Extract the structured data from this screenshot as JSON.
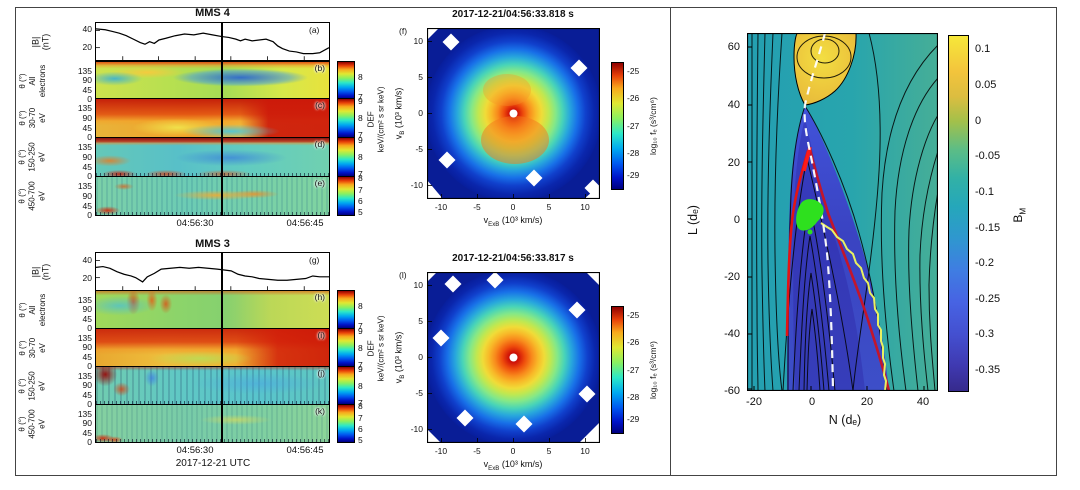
{
  "figure": {
    "left": {
      "cbar_label_lines": [
        "DEF",
        "keV/(cm² s sr keV)"
      ],
      "groups": [
        {
          "title": "MMS 4",
          "bfield": {
            "label_lines": [
              "|B|",
              "(nT)"
            ],
            "yticks": [
              "40",
              "20"
            ],
            "panel": "(a)"
          },
          "spects": [
            {
              "panel": "(b)",
              "label_lines": [
                "θ (°)",
                "All",
                "electrons"
              ],
              "yticks": [
                "135",
                "90",
                "45",
                "0"
              ],
              "cticks": [
                "8",
                "7"
              ]
            },
            {
              "panel": "(c)",
              "label_lines": [
                "θ (°)",
                "30-70",
                "eV"
              ],
              "yticks": [
                "135",
                "90",
                "45",
                "0"
              ],
              "cticks": [
                "9",
                "8",
                "7"
              ]
            },
            {
              "panel": "(d)",
              "label_lines": [
                "θ (°)",
                "150-250",
                "eV"
              ],
              "yticks": [
                "135",
                "90",
                "45",
                "0"
              ],
              "cticks": [
                "9",
                "8",
                "7"
              ]
            },
            {
              "panel": "(e)",
              "label_lines": [
                "θ (°)",
                "450-700",
                "eV"
              ],
              "yticks": [
                "135",
                "90",
                "45",
                "0"
              ],
              "cticks": [
                "8",
                "7",
                "6",
                "5"
              ]
            }
          ],
          "xticks": [
            "04:56:30",
            "04:56:45"
          ]
        },
        {
          "title": "MMS 3",
          "bfield": {
            "label_lines": [
              "|B|",
              "(nT)"
            ],
            "yticks": [
              "40",
              "20"
            ],
            "panel": "(g)"
          },
          "spects": [
            {
              "panel": "(h)",
              "label_lines": [
                "θ (°)",
                "All",
                "electrons"
              ],
              "yticks": [
                "135",
                "90",
                "45",
                "0"
              ],
              "cticks": [
                "8",
                "7"
              ]
            },
            {
              "panel": "(i)",
              "label_lines": [
                "θ (°)",
                "30-70",
                "eV"
              ],
              "yticks": [
                "135",
                "90",
                "45",
                "0"
              ],
              "cticks": [
                "9",
                "8",
                "7"
              ]
            },
            {
              "panel": "(j)",
              "label_lines": [
                "θ (°)",
                "150-250",
                "eV"
              ],
              "yticks": [
                "135",
                "90",
                "45",
                "0"
              ],
              "cticks": [
                "9",
                "8",
                "7"
              ]
            },
            {
              "panel": "(k)",
              "label_lines": [
                "θ (°)",
                "450-700",
                "eV"
              ],
              "yticks": [
                "135",
                "90",
                "45",
                "0"
              ],
              "cticks": [
                "8",
                "7",
                "6",
                "5"
              ]
            }
          ],
          "xticks": [
            "04:56:30",
            "04:56:45"
          ],
          "xlabel": "2017-12-21 UTC"
        }
      ]
    },
    "middle": {
      "ylabel": {
        "pre": "v",
        "sub": "B",
        "post": " (10³ km/s)"
      },
      "xlabel": {
        "pre": "v",
        "sub": "ExB",
        "post": " (10³ km/s)"
      },
      "cbar_label": "log₁₀ fₑ (s³/cm⁶)",
      "plots": [
        {
          "title": "2017-12-21/04:56:33.818 s",
          "panel": "(f)",
          "xticks": [
            "-10",
            "-5",
            "0",
            "5",
            "10"
          ],
          "yticks": [
            "10",
            "5",
            "0",
            "-5",
            "-10"
          ],
          "cticks": [
            "-25",
            "-26",
            "-27",
            "-28",
            "-29"
          ]
        },
        {
          "title": "2017-12-21/04:56:33.817 s",
          "panel": "(l)",
          "xticks": [
            "-10",
            "-5",
            "0",
            "5",
            "10"
          ],
          "yticks": [
            "10",
            "5",
            "0",
            "-5",
            "-10"
          ],
          "cticks": [
            "-25",
            "-26",
            "-27",
            "-28",
            "-29"
          ]
        }
      ]
    },
    "right": {
      "ylabel": "L (dₑ)",
      "xlabel": "N (dₑ)",
      "cbar_label": {
        "pre": "B",
        "sub": "M"
      },
      "yticks": [
        "60",
        "40",
        "20",
        "0",
        "-20",
        "-40",
        "-60"
      ],
      "xticks": [
        "-20",
        "0",
        "20",
        "40"
      ],
      "cticks": [
        "0.1",
        "0.05",
        "0",
        "-0.05",
        "-0.1",
        "-0.15",
        "-0.2",
        "-0.25",
        "-0.3",
        "-0.35"
      ]
    }
  },
  "chart_data": [
    {
      "type": "line",
      "panel": "a",
      "group": "MMS 4",
      "ylabel": "|B| (nT)",
      "ylim": [
        10,
        46
      ],
      "xticks": [
        "04:56:30",
        "04:56:45"
      ],
      "points": [
        [
          0,
          42
        ],
        [
          0.04,
          41
        ],
        [
          0.07,
          39
        ],
        [
          0.1,
          37
        ],
        [
          0.13,
          34
        ],
        [
          0.16,
          30
        ],
        [
          0.19,
          26
        ],
        [
          0.21,
          24
        ],
        [
          0.23,
          27
        ],
        [
          0.25,
          25
        ],
        [
          0.27,
          29
        ],
        [
          0.3,
          31
        ],
        [
          0.34,
          34
        ],
        [
          0.38,
          36
        ],
        [
          0.42,
          35
        ],
        [
          0.46,
          37
        ],
        [
          0.5,
          35
        ],
        [
          0.54,
          33
        ],
        [
          0.57,
          32
        ],
        [
          0.6,
          30
        ],
        [
          0.62,
          28
        ],
        [
          0.64,
          30
        ],
        [
          0.67,
          28
        ],
        [
          0.7,
          29
        ],
        [
          0.73,
          30
        ],
        [
          0.76,
          27
        ],
        [
          0.78,
          22
        ],
        [
          0.8,
          19
        ],
        [
          0.83,
          16
        ],
        [
          0.86,
          15
        ],
        [
          0.89,
          13
        ],
        [
          0.93,
          13
        ],
        [
          0.96,
          14
        ],
        [
          1,
          20
        ]
      ]
    },
    {
      "type": "heatmap",
      "panel": "b",
      "group": "MMS 4",
      "ylabel": "θ (°) All electrons",
      "yrange": [
        0,
        180
      ],
      "colorbar_range": [
        7,
        8.5
      ],
      "quantity": "log10 DEF keV/(cm² s sr keV)",
      "description": "yellow-green background, red near 180°, blue depression around 90° mid-interval"
    },
    {
      "type": "heatmap",
      "panel": "c",
      "group": "MMS 4",
      "ylabel": "θ (°) 30-70 eV",
      "yrange": [
        0,
        180
      ],
      "colorbar_range": [
        7,
        9
      ],
      "description": "intense red-orange above ~45°, yellow below, solid red after 04:56:40"
    },
    {
      "type": "heatmap",
      "panel": "d",
      "group": "MMS 4",
      "ylabel": "θ (°) 150-250 eV",
      "yrange": [
        0,
        180
      ],
      "colorbar_range": [
        7,
        9
      ],
      "description": "dark-red band near 180°, cyan-green body with blue patch near 90°, red patches near 0°"
    },
    {
      "type": "heatmap",
      "panel": "e",
      "group": "MMS 4",
      "ylabel": "θ (°) 450-700 eV",
      "yrange": [
        0,
        180
      ],
      "colorbar_range": [
        5,
        8
      ],
      "description": "cyan-green with orange patches near 90° mid-interval, red spots near 0° early"
    },
    {
      "type": "line",
      "panel": "g",
      "group": "MMS 3",
      "ylabel": "|B| (nT)",
      "ylim": [
        10,
        46
      ],
      "xticks": [
        "04:56:30",
        "04:56:45"
      ],
      "points": [
        [
          0,
          32
        ],
        [
          0.03,
          33
        ],
        [
          0.06,
          31
        ],
        [
          0.09,
          27
        ],
        [
          0.12,
          24
        ],
        [
          0.15,
          22
        ],
        [
          0.17,
          20
        ],
        [
          0.2,
          15
        ],
        [
          0.22,
          21
        ],
        [
          0.25,
          25
        ],
        [
          0.28,
          30
        ],
        [
          0.32,
          31
        ],
        [
          0.36,
          32
        ],
        [
          0.4,
          31
        ],
        [
          0.44,
          32
        ],
        [
          0.48,
          31
        ],
        [
          0.52,
          30
        ],
        [
          0.55,
          29
        ],
        [
          0.58,
          28
        ],
        [
          0.61,
          24
        ],
        [
          0.64,
          22
        ],
        [
          0.67,
          21
        ],
        [
          0.7,
          19
        ],
        [
          0.74,
          18
        ],
        [
          0.78,
          17
        ],
        [
          0.82,
          17
        ],
        [
          0.86,
          18
        ],
        [
          0.9,
          19
        ],
        [
          0.93,
          22
        ],
        [
          0.96,
          21
        ],
        [
          1,
          21
        ]
      ]
    },
    {
      "type": "heatmap",
      "panel": "h",
      "group": "MMS 3",
      "ylabel": "θ (°) All electrons",
      "yrange": [
        0,
        180
      ],
      "colorbar_range": [
        7,
        8.5
      ],
      "description": "green background, red vertical streaks early, yellow toward late times"
    },
    {
      "type": "heatmap",
      "panel": "i",
      "group": "MMS 3",
      "ylabel": "θ (°) 30-70 eV",
      "yrange": [
        0,
        180
      ],
      "colorbar_range": [
        7,
        9
      ],
      "description": "red-orange above ~45°, yellow-green band near bottom, red intensifies at right"
    },
    {
      "type": "heatmap",
      "panel": "j",
      "group": "MMS 3",
      "ylabel": "θ (°) 150-250 eV",
      "yrange": [
        0,
        180
      ],
      "colorbar_range": [
        7,
        9
      ],
      "description": "dark red blobs at left, cyan-blue mid/right"
    },
    {
      "type": "heatmap",
      "panel": "k",
      "group": "MMS 3",
      "ylabel": "θ (°) 450-700 eV",
      "yrange": [
        0,
        180
      ],
      "colorbar_range": [
        5,
        8
      ],
      "description": "mottled green-cyan, faint yellow near 90°, red spots bottom-left"
    },
    {
      "type": "heatmap_polar",
      "panel": "f",
      "title": "2017-12-21/04:56:33.818 s",
      "xlabel": "v_ExB (10³ km/s)",
      "ylabel": "v_B (10³ km/s)",
      "xlim": [
        -12,
        12
      ],
      "ylim": [
        -12,
        12
      ],
      "clabel": "log₁₀ fₑ (s³/cm⁶)",
      "colorbar_range": [
        -29.5,
        -24.5
      ],
      "radial_profile": [
        [
          0,
          -24.8
        ],
        [
          2,
          -25.2
        ],
        [
          4,
          -26.0
        ],
        [
          6,
          -26.8
        ],
        [
          8,
          -27.6
        ],
        [
          10,
          -28.4
        ],
        [
          12,
          -29.2
        ]
      ],
      "description": "phase-space density peaked at origin, slightly extended toward -vB, white data-gap pixels near edge, white dot at center"
    },
    {
      "type": "heatmap_polar",
      "panel": "l",
      "title": "2017-12-21/04:56:33.817 s",
      "xlabel": "v_ExB (10³ km/s)",
      "ylabel": "v_B (10³ km/s)",
      "xlim": [
        -12,
        12
      ],
      "ylim": [
        -12,
        12
      ],
      "clabel": "log₁₀ fₑ (s³/cm⁶)",
      "colorbar_range": [
        -29.5,
        -24.5
      ],
      "radial_profile": [
        [
          0,
          -24.8
        ],
        [
          2,
          -25.1
        ],
        [
          4,
          -25.8
        ],
        [
          6,
          -26.6
        ],
        [
          8,
          -27.5
        ],
        [
          10,
          -28.4
        ],
        [
          12,
          -29.3
        ]
      ],
      "description": "nearly isotropic peak at origin, white data-gap pixels around periphery, white dot at center"
    },
    {
      "type": "contour_heatmap",
      "panel": "simulation",
      "xlabel": "N (dₑ)",
      "ylabel": "L (dₑ)",
      "xlim": [
        -22.5,
        45
      ],
      "ylim": [
        -60,
        65
      ],
      "clabel": "B_M",
      "colorbar_range": [
        -0.38,
        0.12
      ],
      "features": [
        "positive B_M (yellow, ~+0.1) lobe above X-point near (N=-3, L=40)",
        "negative B_M (~-0.3) dark blue wedge below X-point",
        "black in-plane field-line contours",
        "white dashed separatrix from top through X-point to (N≈13, L≈-60)",
        "red curves bounding inner wedge from (0,23) to (-9,-43) and to (37,-60)",
        "yellow wavy trajectory from green patch at (N≈5, L≈0) to (N≈33, L≈-60)",
        "green patch near (N≈5, L≈0)"
      ]
    }
  ]
}
